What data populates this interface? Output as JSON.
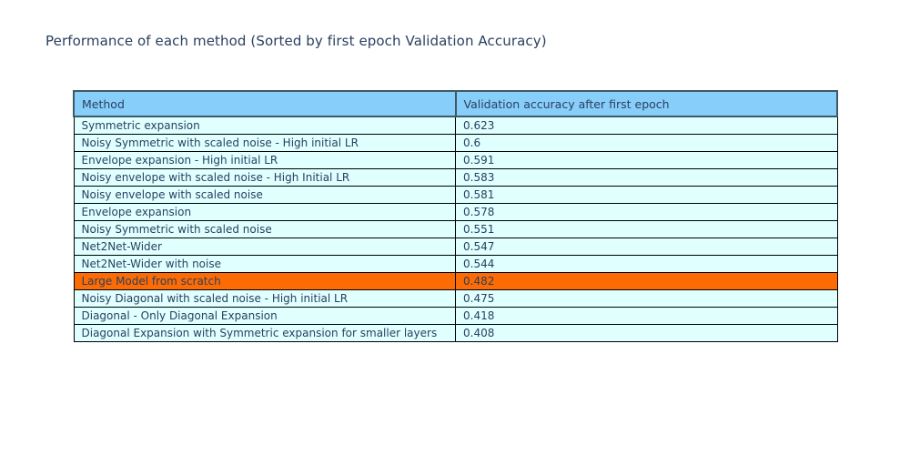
{
  "title": "Performance of each method (Sorted by first epoch Validation Accuracy)",
  "chart_data": {
    "type": "table",
    "title": "Performance of each method (Sorted by first epoch Validation Accuracy)",
    "columns": [
      "Method",
      "Validation accuracy after first epoch"
    ],
    "rows": [
      {
        "method": "Symmetric expansion",
        "accuracy": "0.623",
        "highlight": false
      },
      {
        "method": "Noisy Symmetric with scaled noise - High initial LR",
        "accuracy": "0.6",
        "highlight": false
      },
      {
        "method": "Envelope expansion - High initial LR",
        "accuracy": "0.591",
        "highlight": false
      },
      {
        "method": "Noisy envelope with scaled noise - High Initial LR",
        "accuracy": "0.583",
        "highlight": false
      },
      {
        "method": "Noisy envelope with scaled noise",
        "accuracy": "0.581",
        "highlight": false
      },
      {
        "method": "Envelope expansion",
        "accuracy": "0.578",
        "highlight": false
      },
      {
        "method": "Noisy Symmetric with scaled noise",
        "accuracy": "0.551",
        "highlight": false
      },
      {
        "method": "Net2Net-Wider",
        "accuracy": "0.547",
        "highlight": false
      },
      {
        "method": "Net2Net-Wider with noise",
        "accuracy": "0.544",
        "highlight": false
      },
      {
        "method": "Large Model from scratch",
        "accuracy": "0.482",
        "highlight": true
      },
      {
        "method": "Noisy Diagonal with scaled noise - High initial LR",
        "accuracy": "0.475",
        "highlight": false
      },
      {
        "method": "Diagonal - Only Diagonal Expansion",
        "accuracy": "0.418",
        "highlight": false
      },
      {
        "method": "Diagonal Expansion with Symmetric expansion for smaller layers",
        "accuracy": "0.408",
        "highlight": false
      }
    ],
    "highlighted_method": "Large Model from scratch",
    "layout_hints": {
      "sort": "descending by accuracy",
      "grid": true
    }
  },
  "colors": {
    "header_bg": "#87CEFA",
    "row_bg": "#E0FFFF",
    "highlight_bg": "#FD6B04",
    "text": "#2A3F5F",
    "cell_border": "#000000",
    "header_border": "#3C5A63",
    "page_bg": "#FFFFFF"
  }
}
